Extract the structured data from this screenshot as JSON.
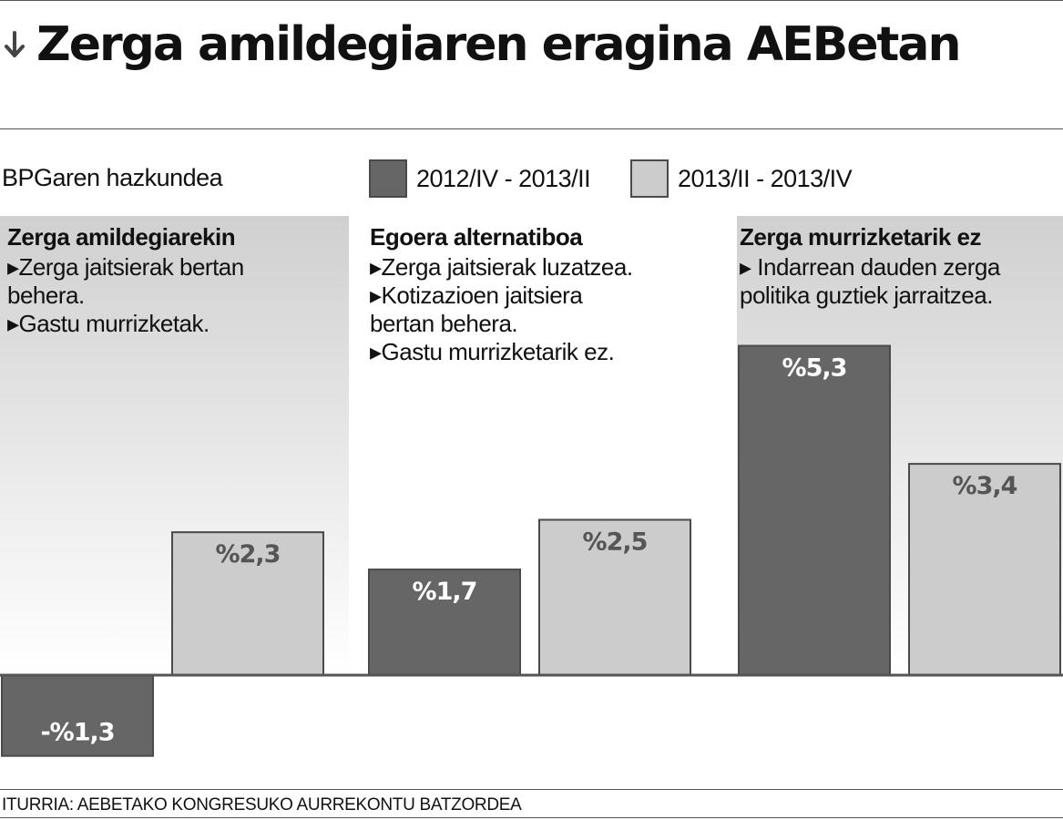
{
  "header": {
    "title": "Zerga amildegiaren eragina AEBetan",
    "arrow_icon": "arrow-down-icon"
  },
  "subtitle": "BPGaren hazkundea",
  "legend": [
    {
      "label": "2012/IV - 2013/II",
      "color": "#666666"
    },
    {
      "label": "2013/II - 2013/IV",
      "color": "#cccccc"
    }
  ],
  "scenarios": [
    {
      "title": "Zerga amildegiarekin",
      "lines": [
        "▸Zerga jaitsierak bertan",
        "behera.",
        "▸Gastu murrizketak."
      ]
    },
    {
      "title": "Egoera alternatiboa",
      "lines": [
        "▸Zerga jaitsierak luzatzea.",
        "▸Kotizazioen jaitsiera",
        "bertan behera.",
        "▸Gastu murrizketarik ez."
      ]
    },
    {
      "title": "Zerga murrizketarik ez",
      "lines": [
        "▸ Indarrean dauden zerga",
        "politika guztiek jarraitzea."
      ]
    }
  ],
  "chart_data": {
    "type": "bar",
    "ylabel": "BPGaren hazkundea",
    "categories": [
      "Zerga amildegiarekin",
      "Egoera alternatiboa",
      "Zerga murrizketarik ez"
    ],
    "series": [
      {
        "name": "2012/IV - 2013/II",
        "values": [
          -1.3,
          1.7,
          5.3
        ],
        "labels": [
          "-%1,3",
          "%1,7",
          "%5,3"
        ],
        "color": "#666666",
        "label_color": "#ffffff"
      },
      {
        "name": "2013/II - 2013/IV",
        "values": [
          2.3,
          2.5,
          3.4
        ],
        "labels": [
          "%2,3",
          "%2,5",
          "%3,4"
        ],
        "color": "#cccccc",
        "label_color": "#555555"
      }
    ],
    "highlighted_scenarios": [
      0,
      2
    ],
    "highlight_color": "#d0d0d0",
    "grid": false
  },
  "source": "ITURRIA: AEBETAKO KONGRESUKO AURREKONTU BATZORDEA"
}
